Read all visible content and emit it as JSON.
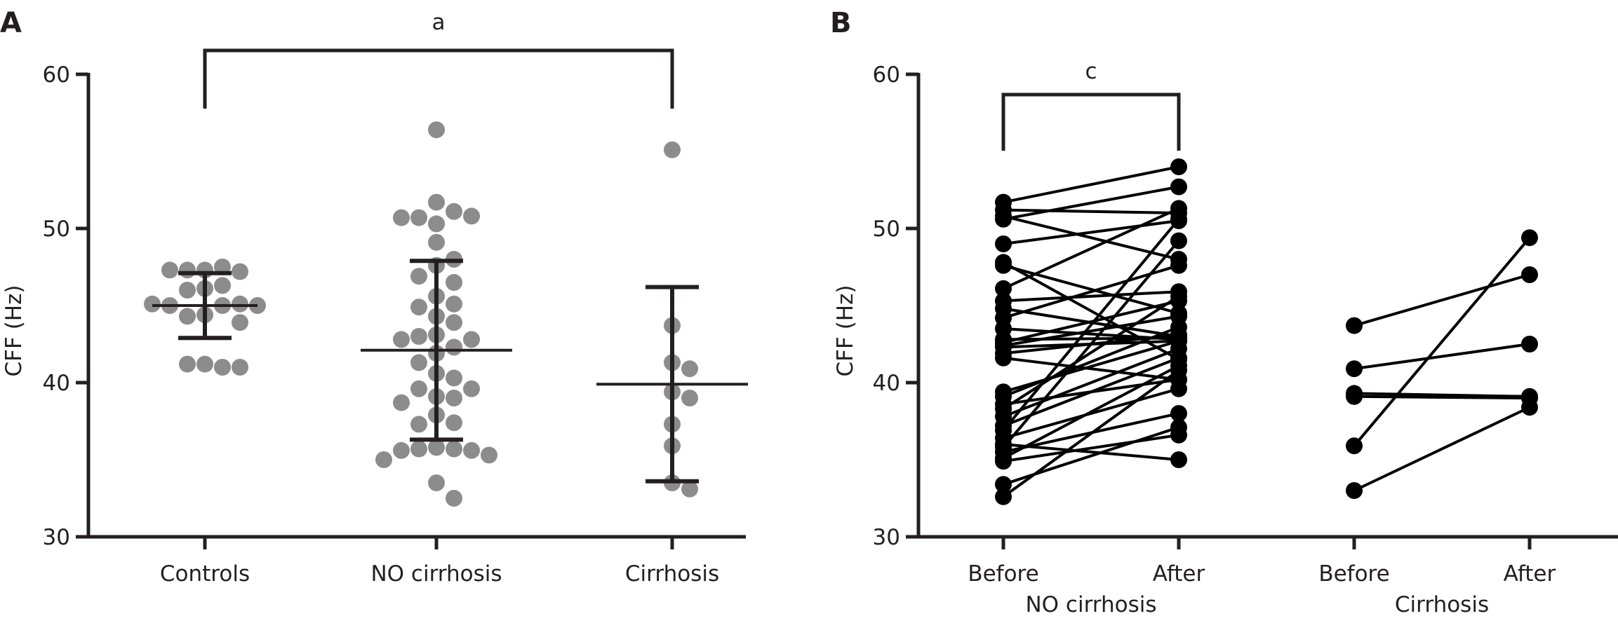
{
  "chart_data": [
    {
      "panel": "A",
      "type": "scatter",
      "ylabel": "CFF (Hz)",
      "ylim": [
        30,
        60
      ],
      "yticks": [
        30,
        40,
        50,
        60
      ],
      "categories": [
        "Controls",
        "NO cirrhosis",
        "Cirrhosis"
      ],
      "colors": {
        "points": "#8c8c8c",
        "bars": "#231f20"
      },
      "groups": [
        {
          "name": "Controls",
          "values": [
            47.3,
            47.5,
            47.3,
            47.2,
            47.3,
            46.3,
            46.1,
            46.0,
            45.0,
            45.1,
            45.0,
            45.0,
            45.1,
            44.4,
            44.3,
            43.9,
            41.2,
            41.0,
            41.2,
            41.0
          ],
          "mean": 45.0,
          "upper": 47.1,
          "lower": 42.9
        },
        {
          "name": "NO cirrhosis",
          "values": [
            56.4,
            51.7,
            51.1,
            50.7,
            50.8,
            50.7,
            50.3,
            49.1,
            48.0,
            47.6,
            46.9,
            46.5,
            45.6,
            45.1,
            44.9,
            44.3,
            43.9,
            43.1,
            43.0,
            42.8,
            42.8,
            42.3,
            41.9,
            41.3,
            40.6,
            40.3,
            39.6,
            39.6,
            39.1,
            39.0,
            38.7,
            37.9,
            37.4,
            37.3,
            35.8,
            35.7,
            35.7,
            35.6,
            35.6,
            35.3,
            35.0,
            33.5,
            32.5
          ],
          "mean": 42.1,
          "upper": 47.9,
          "lower": 36.3
        },
        {
          "name": "Cirrhosis",
          "values": [
            55.1,
            43.7,
            41.3,
            40.9,
            39.4,
            39.0,
            37.3,
            35.9,
            33.5,
            33.1
          ],
          "mean": 39.9,
          "upper": 46.2,
          "lower": 33.6
        }
      ],
      "significance": {
        "from": "Controls",
        "to": "Cirrhosis",
        "label": "a"
      }
    },
    {
      "panel": "B",
      "type": "line",
      "ylabel": "CFF (Hz)",
      "ylim": [
        30,
        60
      ],
      "yticks": [
        30,
        40,
        50,
        60
      ],
      "group_labels": [
        "NO cirrhosis",
        "Cirrhosis"
      ],
      "timepoints": [
        "Before",
        "After"
      ],
      "colors": {
        "points": "#000000",
        "lines": "#000000"
      },
      "groups": [
        {
          "name": "NO cirrhosis",
          "pairs": [
            [
              51.7,
              54.0
            ],
            [
              51.2,
              51.0
            ],
            [
              50.8,
              48.0
            ],
            [
              50.6,
              52.7
            ],
            [
              49.0,
              50.5
            ],
            [
              47.8,
              41.5
            ],
            [
              47.6,
              44.5
            ],
            [
              46.1,
              51.3
            ],
            [
              45.3,
              45.9
            ],
            [
              44.8,
              43.0
            ],
            [
              44.2,
              47.6
            ],
            [
              43.5,
              42.8
            ],
            [
              42.8,
              42.9
            ],
            [
              42.6,
              45.3
            ],
            [
              42.4,
              44.3
            ],
            [
              42.3,
              42.7
            ],
            [
              41.9,
              43.1
            ],
            [
              41.6,
              40.2
            ],
            [
              39.4,
              42.7
            ],
            [
              39.1,
              43.6
            ],
            [
              38.6,
              40.2
            ],
            [
              38.3,
              45.6
            ],
            [
              37.8,
              42.2
            ],
            [
              37.2,
              41.6
            ],
            [
              36.9,
              50.6
            ],
            [
              36.4,
              39.6
            ],
            [
              36.0,
              35.0
            ],
            [
              35.8,
              49.2
            ],
            [
              35.5,
              38.0
            ],
            [
              35.1,
              41.1
            ],
            [
              34.9,
              36.6
            ],
            [
              33.4,
              37.1
            ],
            [
              32.6,
              40.8
            ]
          ]
        },
        {
          "name": "Cirrhosis",
          "pairs": [
            [
              43.7,
              47.0
            ],
            [
              40.9,
              42.5
            ],
            [
              39.3,
              39.1
            ],
            [
              39.1,
              39.0
            ],
            [
              35.9,
              49.4
            ],
            [
              33.0,
              38.4
            ]
          ]
        }
      ],
      "significance": {
        "group": "NO cirrhosis",
        "label": "c"
      }
    }
  ]
}
